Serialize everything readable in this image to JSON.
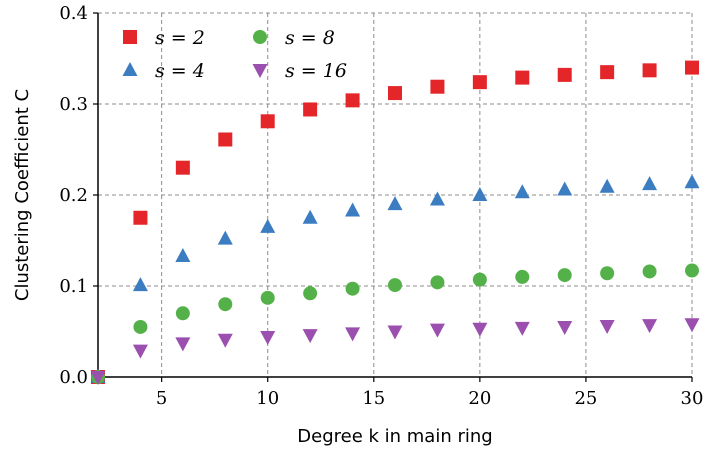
{
  "chart_data": {
    "type": "scatter",
    "xlabel": "Degree k in main ring",
    "ylabel": "Clustering Coefficient C",
    "xlim": [
      2,
      30
    ],
    "ylim": [
      0,
      0.4
    ],
    "xticks": [
      5,
      10,
      15,
      20,
      25,
      30
    ],
    "yticks": [
      0.0,
      0.1,
      0.2,
      0.3,
      0.4
    ],
    "xtick_labels": [
      "5",
      "10",
      "15",
      "20",
      "25",
      "30"
    ],
    "ytick_labels": [
      "0.0",
      "0.1",
      "0.2",
      "0.3",
      "0.4"
    ],
    "grid": true,
    "legend_position": "top-left",
    "x": [
      2,
      4,
      6,
      8,
      10,
      12,
      14,
      16,
      18,
      20,
      22,
      24,
      26,
      28,
      30
    ],
    "series": [
      {
        "name": "s = 2",
        "marker": "square",
        "color": "#e4262a",
        "values": [
          0.0,
          0.175,
          0.23,
          0.261,
          0.281,
          0.294,
          0.304,
          0.312,
          0.319,
          0.324,
          0.329,
          0.332,
          0.335,
          0.337,
          0.34
        ]
      },
      {
        "name": "s = 4",
        "marker": "triangle-up",
        "color": "#3b7dc0",
        "values": [
          0.0,
          0.101,
          0.133,
          0.152,
          0.165,
          0.175,
          0.183,
          0.19,
          0.195,
          0.2,
          0.203,
          0.206,
          0.209,
          0.212,
          0.214
        ]
      },
      {
        "name": "s = 8",
        "marker": "circle",
        "color": "#54b14a",
        "values": [
          0.0,
          0.055,
          0.07,
          0.08,
          0.087,
          0.092,
          0.097,
          0.101,
          0.104,
          0.107,
          0.11,
          0.112,
          0.114,
          0.116,
          0.117
        ]
      },
      {
        "name": "s = 16",
        "marker": "triangle-down",
        "color": "#9b4fae",
        "values": [
          0.0,
          0.029,
          0.037,
          0.041,
          0.044,
          0.046,
          0.048,
          0.05,
          0.052,
          0.053,
          0.054,
          0.055,
          0.056,
          0.057,
          0.058
        ]
      }
    ]
  }
}
